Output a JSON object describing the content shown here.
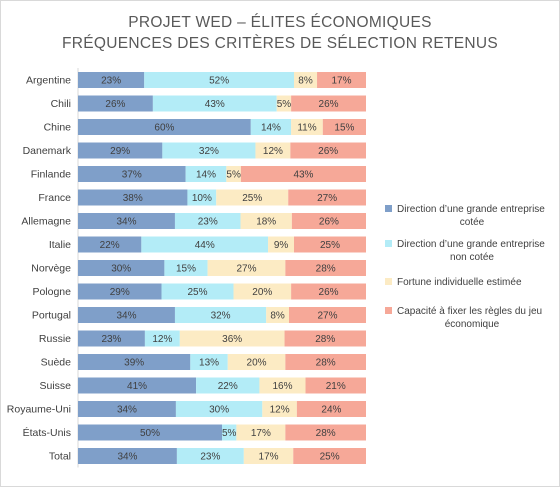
{
  "chart_data": {
    "type": "bar",
    "orientation": "horizontal",
    "stacked": true,
    "percent": true,
    "title": [
      "PROJET WED – ÉLITES ÉCONOMIQUES",
      "FRÉQUENCES DES CRITÈRES DE SÉLECTION RETENUS"
    ],
    "categories": [
      "Argentine",
      "Chili",
      "Chine",
      "Danemark",
      "Finlande",
      "France",
      "Allemagne",
      "Italie",
      "Norvège",
      "Pologne",
      "Portugal",
      "Russie",
      "Suède",
      "Suisse",
      "Royaume-Uni",
      "États-Unis",
      "Total"
    ],
    "series": [
      {
        "name": "Direction d’une grande entreprise cotée",
        "legend_lines": [
          "Direction d’une grande entreprise",
          "cotée"
        ],
        "color": "#7f9fc9",
        "values": [
          23,
          26,
          60,
          29,
          37,
          38,
          34,
          22,
          30,
          29,
          34,
          23,
          39,
          41,
          34,
          50,
          34
        ],
        "labels": [
          "23%",
          "26%",
          "60%",
          "29%",
          "37%",
          "38%",
          "34%",
          "22%",
          "30%",
          "29%",
          "34%",
          "23%",
          "39%",
          "41%",
          "34%",
          "50%",
          "34%"
        ]
      },
      {
        "name": "Direction d’une grande entreprise non cotée",
        "legend_lines": [
          "Direction d’une grande entreprise",
          "non cotée"
        ],
        "color": "#b3ecf7",
        "values": [
          52,
          43,
          14,
          32,
          14,
          10,
          23,
          44,
          15,
          25,
          32,
          12,
          13,
          22,
          30,
          5,
          23
        ],
        "labels": [
          "52%",
          "43%",
          "14%",
          "32%",
          "14%",
          "10%",
          "23%",
          "44%",
          "15%",
          "25%",
          "32%",
          "12%",
          "13%",
          "22%",
          "30%",
          "5%",
          "23%"
        ]
      },
      {
        "name": "Fortune individuelle estimée",
        "legend_lines": [
          "Fortune individuelle estimée"
        ],
        "color": "#fcebc4",
        "values": [
          8,
          5,
          11,
          12,
          5,
          25,
          18,
          9,
          27,
          20,
          8,
          36,
          20,
          16,
          12,
          17,
          17
        ],
        "labels": [
          "8%",
          "5%",
          "11%",
          "12%",
          "5%",
          "25%",
          "18%",
          "9%",
          "27%",
          "20%",
          "8%",
          "36%",
          "20%",
          "16%",
          "12%",
          "17%",
          "17%"
        ]
      },
      {
        "name": "Capacité à fixer les règles du jeu économique",
        "legend_lines": [
          "Capacité à fixer les règles du jeu",
          "économique"
        ],
        "color": "#f6a898",
        "values": [
          17,
          26,
          15,
          26,
          43,
          27,
          26,
          25,
          28,
          26,
          27,
          28,
          28,
          21,
          24,
          28,
          25
        ],
        "labels": [
          "17%",
          "26%",
          "15%",
          "26%",
          "43%",
          "27%",
          "26%",
          "25%",
          "28%",
          "26%",
          "27%",
          "28%",
          "28%",
          "21%",
          "24%",
          "28%",
          "25%"
        ]
      }
    ],
    "legend_position": "right",
    "grid": false
  }
}
